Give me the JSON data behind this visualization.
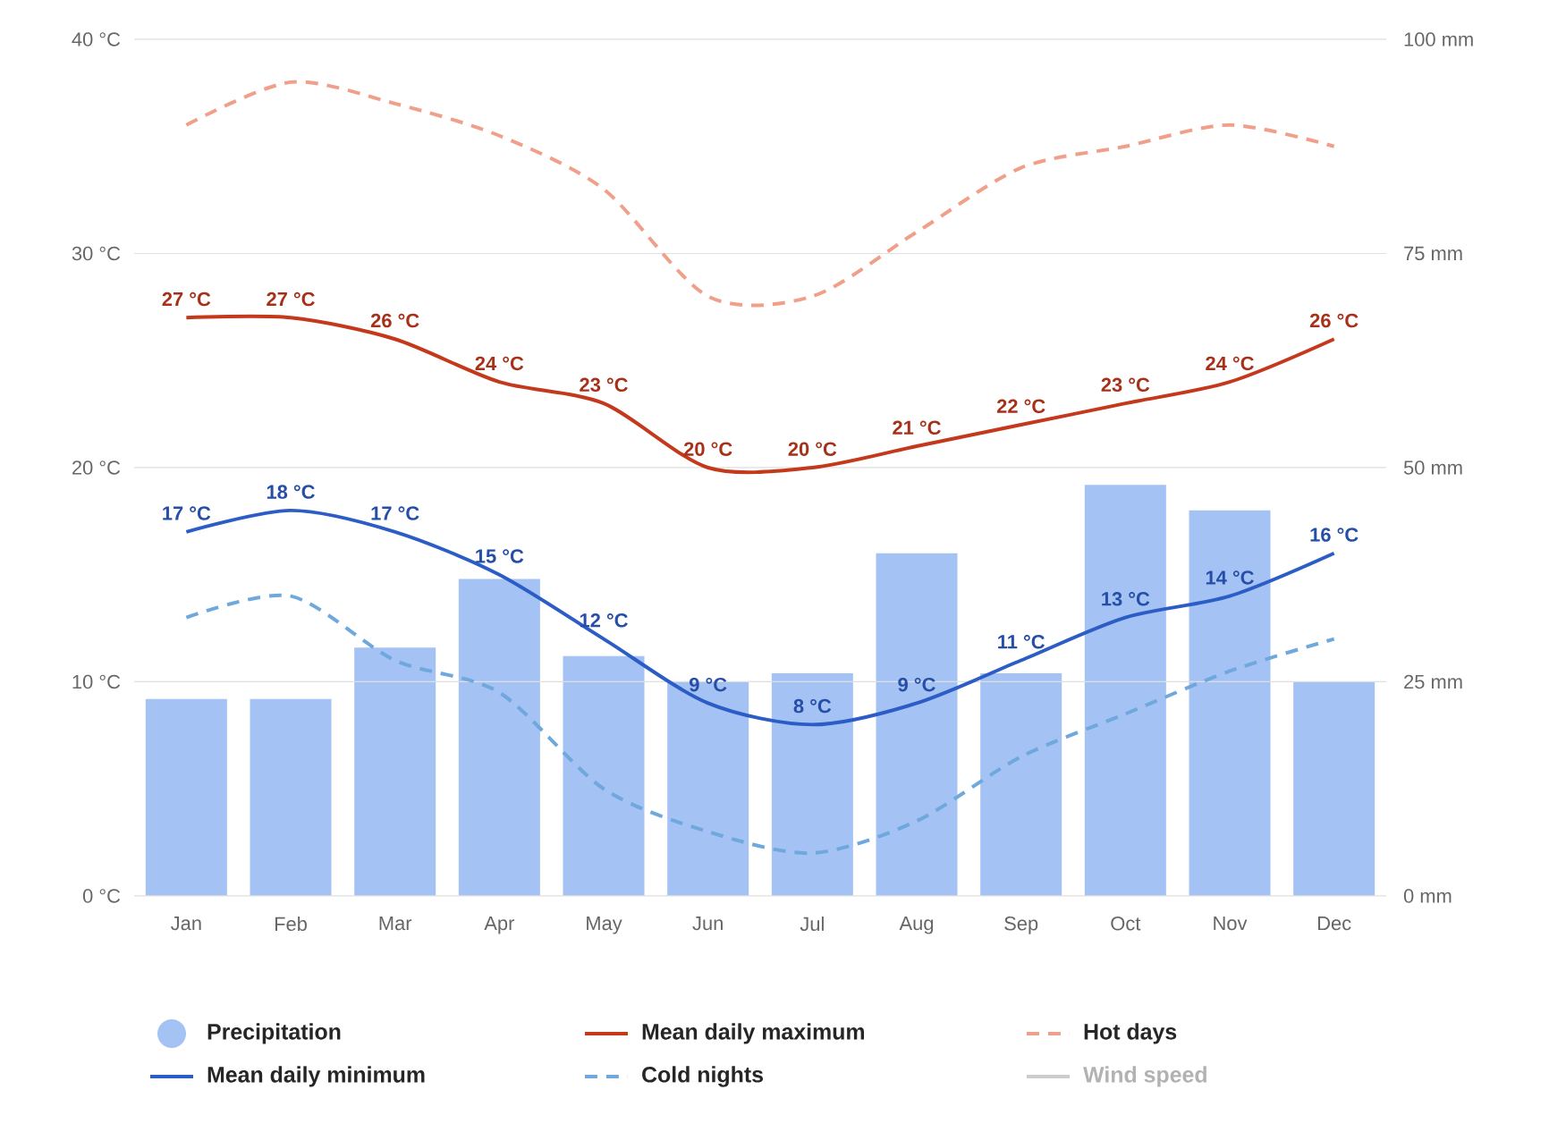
{
  "chart_data": {
    "type": "line",
    "categories": [
      "Jan",
      "Feb",
      "Mar",
      "Apr",
      "May",
      "Jun",
      "Jul",
      "Aug",
      "Sep",
      "Oct",
      "Nov",
      "Dec"
    ],
    "ylim": [
      0,
      40
    ],
    "yticks": [
      {
        "value": 0,
        "label": "0 °C"
      },
      {
        "value": 10,
        "label": "10 °C"
      },
      {
        "value": 20,
        "label": "20 °C"
      },
      {
        "value": 30,
        "label": "30 °C"
      },
      {
        "value": 40,
        "label": "40 °C"
      }
    ],
    "y2lim": [
      0,
      100
    ],
    "y2ticks": [
      {
        "value": 0,
        "label": "0 mm"
      },
      {
        "value": 25,
        "label": "25 mm"
      },
      {
        "value": 50,
        "label": "50 mm"
      },
      {
        "value": 75,
        "label": "75 mm"
      },
      {
        "value": 100,
        "label": "100 mm"
      }
    ],
    "grid": "y",
    "legend": "bottom",
    "series": [
      {
        "name": "Precipitation",
        "type": "bar",
        "axis": "y2",
        "color": "#a4c2f4",
        "values": [
          23,
          23,
          29,
          37,
          28,
          25,
          26,
          40,
          26,
          48,
          45,
          25
        ]
      },
      {
        "name": "Mean daily maximum",
        "color": "#c4391c",
        "line_style": "solid",
        "values": [
          27,
          27,
          26,
          24,
          23,
          20,
          20,
          21,
          22,
          23,
          24,
          26
        ],
        "value_labels": [
          "27 °C",
          "27 °C",
          "26 °C",
          "24 °C",
          "23 °C",
          "20 °C",
          "20 °C",
          "21 °C",
          "22 °C",
          "23 °C",
          "24 °C",
          "26 °C"
        ]
      },
      {
        "name": "Hot days",
        "color": "#f0a08a",
        "line_style": "dashed",
        "values": [
          36,
          38,
          37,
          35.5,
          33,
          28,
          28,
          31,
          34,
          35,
          36,
          35
        ]
      },
      {
        "name": "Mean daily minimum",
        "color": "#2c5cc5",
        "line_style": "solid",
        "values": [
          17,
          18,
          17,
          15,
          12,
          9,
          8,
          9,
          11,
          13,
          14,
          16
        ],
        "value_labels": [
          "17 °C",
          "18 °C",
          "17 °C",
          "15 °C",
          "12 °C",
          "9 °C",
          "8 °C",
          "9 °C",
          "11 °C",
          "13 °C",
          "14 °C",
          "16 °C"
        ]
      },
      {
        "name": "Cold nights",
        "color": "#6fa8dc",
        "line_style": "dashed",
        "values": [
          13,
          14,
          11,
          9.5,
          5,
          3,
          2,
          3.5,
          6.5,
          8.5,
          10.5,
          12
        ]
      },
      {
        "name": "Wind speed",
        "color": "#cccccc",
        "line_style": "solid",
        "values": [
          null,
          null,
          null,
          null,
          null,
          null,
          null,
          null,
          null,
          null,
          null,
          null
        ]
      }
    ]
  }
}
